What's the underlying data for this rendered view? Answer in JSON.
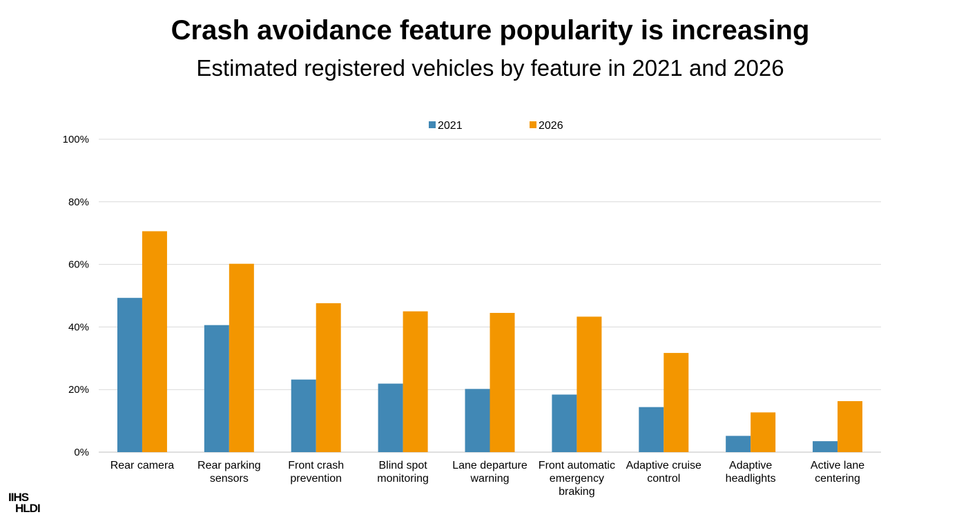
{
  "title": "Crash avoidance feature popularity is increasing",
  "subtitle": "Estimated registered vehicles by feature in 2021 and 2026",
  "logo": {
    "line1": "IIHS",
    "line2": "HLDI"
  },
  "colors": {
    "series_2021": "#4188b5",
    "series_2026": "#f39600",
    "grid": "#d9d9d9"
  },
  "chart_data": {
    "type": "bar",
    "title": "Estimated registered vehicles by feature in 2021 and 2026",
    "categories": [
      "Rear camera",
      "Rear parking sensors",
      "Front crash prevention",
      "Blind spot monitoring",
      "Lane departure warning",
      "Front automatic emergency braking",
      "Adaptive cruise control",
      "Adaptive headlights",
      "Active lane centering"
    ],
    "category_lines": [
      [
        "Rear camera"
      ],
      [
        "Rear parking",
        "sensors"
      ],
      [
        "Front crash",
        "prevention"
      ],
      [
        "Blind spot",
        "monitoring"
      ],
      [
        "Lane departure",
        "warning"
      ],
      [
        "Front automatic",
        "emergency",
        "braking"
      ],
      [
        "Adaptive cruise",
        "control"
      ],
      [
        "Adaptive",
        "headlights"
      ],
      [
        "Active lane",
        "centering"
      ]
    ],
    "series": [
      {
        "name": "2021",
        "values": [
          49.3,
          40.6,
          23.2,
          21.9,
          20.2,
          18.4,
          14.4,
          5.2,
          3.5
        ]
      },
      {
        "name": "2026",
        "values": [
          70.6,
          60.2,
          47.6,
          45.0,
          44.5,
          43.3,
          31.7,
          12.7,
          16.3
        ]
      }
    ],
    "ylim": [
      0,
      100
    ],
    "yticks": [
      0,
      20,
      40,
      60,
      80,
      100
    ],
    "ytick_labels": [
      "0%",
      "20%",
      "40%",
      "60%",
      "80%",
      "100%"
    ],
    "xlabel": "",
    "ylabel": "",
    "grid": true,
    "legend_position": "top-center"
  }
}
